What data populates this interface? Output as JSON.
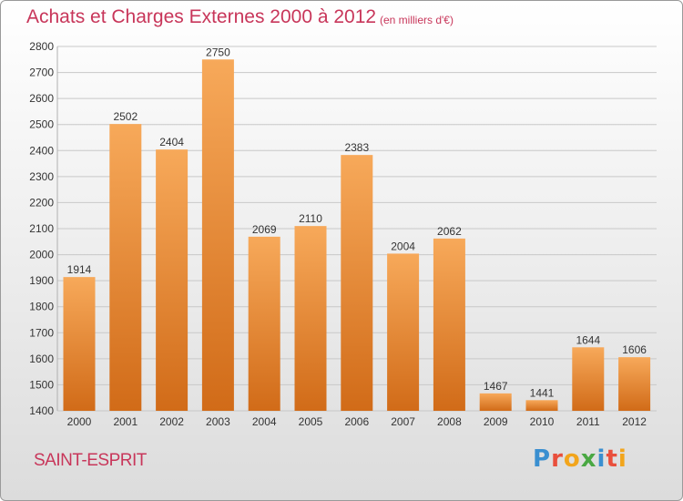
{
  "header": {
    "title": "Achats et Charges Externes 2000 à 2012",
    "subtitle": "(en milliers d'€)"
  },
  "footer": {
    "commune": "SAINT-ESPRIT",
    "logo_text": "Proxiti",
    "logo_letters": [
      {
        "char": "P",
        "color": "#3a8fd0"
      },
      {
        "char": "r",
        "color": "#e94f3c"
      },
      {
        "char": "o",
        "color": "#f2a51c"
      },
      {
        "char": "x",
        "color": "#4aa843"
      },
      {
        "char": "i",
        "color": "#3a8fd0"
      },
      {
        "char": "t",
        "color": "#e94f3c"
      },
      {
        "char": "i",
        "color": "#f2a51c"
      }
    ]
  },
  "colors": {
    "accent": "#c8365a",
    "bar_top": "#f7a95a",
    "bar_bottom": "#d16b18",
    "grid": "#c8c8c8",
    "text": "#333333"
  },
  "chart_data": {
    "type": "bar",
    "categories": [
      "2000",
      "2001",
      "2002",
      "2003",
      "2004",
      "2005",
      "2006",
      "2007",
      "2008",
      "2009",
      "2010",
      "2011",
      "2012"
    ],
    "values": [
      1914,
      2502,
      2404,
      2750,
      2069,
      2110,
      2383,
      2004,
      2062,
      1467,
      1441,
      1644,
      1606
    ],
    "ylim": [
      1400,
      2800
    ],
    "yticks": [
      1400,
      1500,
      1600,
      1700,
      1800,
      1900,
      2000,
      2100,
      2200,
      2300,
      2400,
      2500,
      2600,
      2700,
      2800
    ],
    "grid": true,
    "data_labels": true
  }
}
